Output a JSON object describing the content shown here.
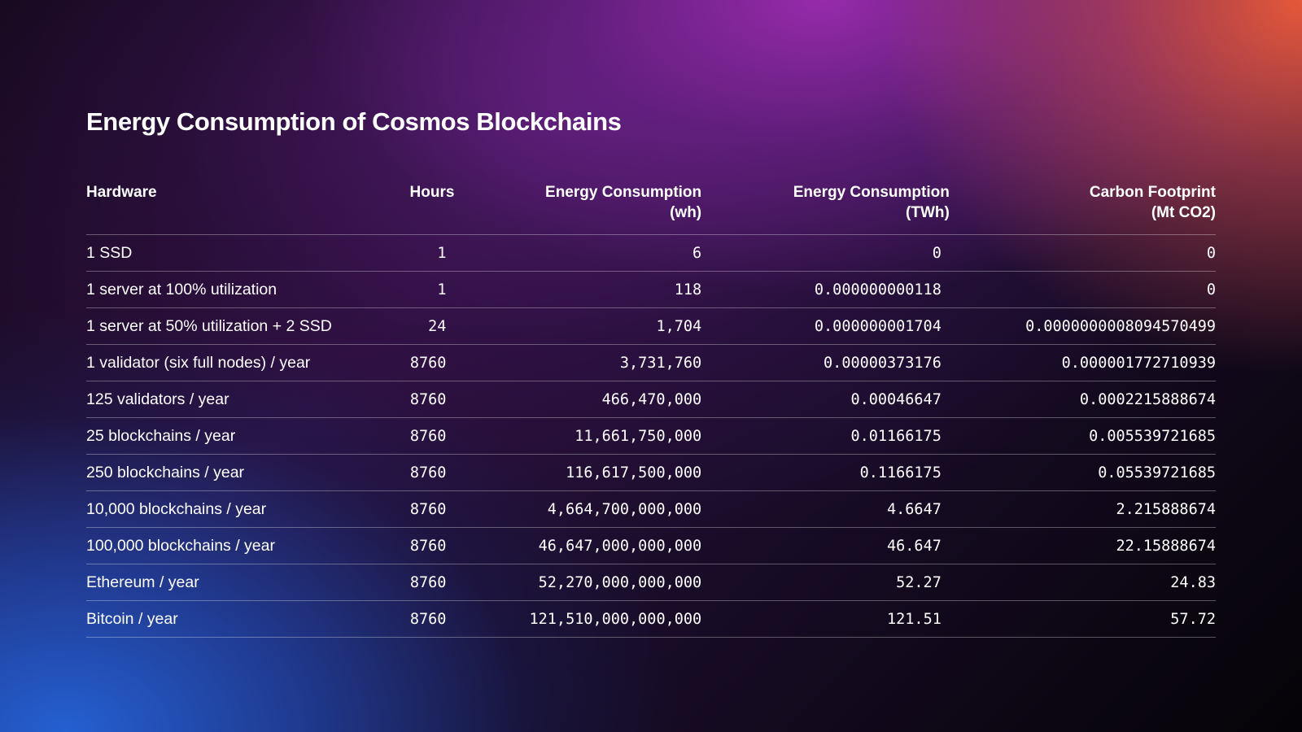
{
  "title": "Energy Consumption of Cosmos Blockchains",
  "chart_data": {
    "type": "table",
    "title": "Energy Consumption of Cosmos Blockchains",
    "columns": [
      {
        "key": "hardware",
        "lines": [
          "Hardware"
        ]
      },
      {
        "key": "hours",
        "lines": [
          "Hours"
        ]
      },
      {
        "key": "energy_wh",
        "lines": [
          "Energy Consumption",
          "(wh)"
        ]
      },
      {
        "key": "energy_twh",
        "lines": [
          "Energy Consumption",
          "(TWh)"
        ]
      },
      {
        "key": "carbon",
        "lines": [
          "Carbon Footprint",
          "(Mt CO2)"
        ]
      }
    ],
    "rows": [
      [
        "1 SSD",
        "1",
        "6",
        "0",
        "0"
      ],
      [
        "1 server at 100% utilization",
        "1",
        "118",
        "0.000000000118",
        "0"
      ],
      [
        "1 server at 50% utilization + 2 SSD",
        "24",
        "1,704",
        "0.000000001704",
        "0.0000000008094570499"
      ],
      [
        "1 validator (six full nodes) / year",
        "8760",
        "3,731,760",
        "0.00000373176",
        "0.000001772710939"
      ],
      [
        "125 validators / year",
        "8760",
        "466,470,000",
        "0.00046647",
        "0.0002215888674"
      ],
      [
        "25 blockchains / year",
        "8760",
        "11,661,750,000",
        "0.01166175",
        "0.005539721685"
      ],
      [
        "250 blockchains / year",
        "8760",
        "116,617,500,000",
        "0.1166175",
        "0.05539721685"
      ],
      [
        "10,000 blockchains / year",
        "8760",
        "4,664,700,000,000",
        "4.6647",
        "2.215888674"
      ],
      [
        "100,000 blockchains / year",
        "8760",
        "46,647,000,000,000",
        "46.647",
        "22.15888674"
      ],
      [
        "Ethereum / year",
        "8760",
        "52,270,000,000,000",
        "52.27",
        "24.83"
      ],
      [
        "Bitcoin / year",
        "8760",
        "121,510,000,000,000",
        "121.51",
        "57.72"
      ]
    ]
  },
  "colors": {
    "text": "#ffffff",
    "divider": "rgba(255,255,255,0.32)",
    "gradient_top_right": "#f05c3a",
    "gradient_top_center": "#9c2cb0",
    "gradient_bottom_left": "#2460d2",
    "background_dark": "#050307"
  }
}
